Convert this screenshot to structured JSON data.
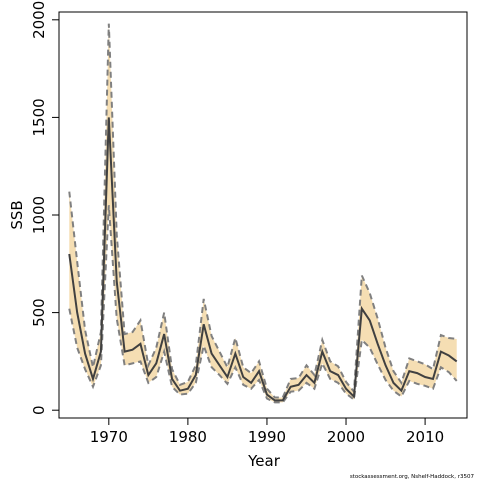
{
  "chart_data": {
    "type": "line",
    "xlabel": "Year",
    "ylabel": "SSB",
    "xlim": [
      1963.7,
      2015.3
    ],
    "ylim": [
      -40,
      2040
    ],
    "x_ticks": [
      1970,
      1980,
      1990,
      2000,
      2010
    ],
    "y_ticks": [
      0,
      500,
      1000,
      1500,
      2000
    ],
    "credit": "stockassessment.org, Nshelf-Haddock, r3507",
    "colors": {
      "band": "#f5deb3",
      "line": "#404040",
      "dashed": "#808080",
      "frame": "#000000"
    },
    "x": [
      1965,
      1966,
      1967,
      1968,
      1969,
      1970,
      1971,
      1972,
      1973,
      1974,
      1975,
      1976,
      1977,
      1978,
      1979,
      1980,
      1981,
      1982,
      1983,
      1984,
      1985,
      1986,
      1987,
      1988,
      1989,
      1990,
      1991,
      1992,
      1993,
      1994,
      1995,
      1996,
      1997,
      1998,
      1999,
      2000,
      2001,
      2002,
      2003,
      2004,
      2005,
      2006,
      2007,
      2008,
      2009,
      2010,
      2011,
      2012,
      2013,
      2014
    ],
    "series": [
      {
        "role": "estimate",
        "values": [
          800,
          500,
          290,
          160,
          300,
          1500,
          660,
          300,
          310,
          340,
          180,
          240,
          390,
          160,
          100,
          110,
          180,
          440,
          290,
          230,
          170,
          290,
          170,
          140,
          200,
          80,
          50,
          50,
          120,
          130,
          180,
          140,
          300,
          200,
          180,
          110,
          70,
          520,
          460,
          340,
          230,
          140,
          100,
          200,
          190,
          170,
          160,
          300,
          280,
          250
        ]
      },
      {
        "role": "lower",
        "values": [
          520,
          320,
          210,
          120,
          230,
          1050,
          470,
          230,
          240,
          250,
          140,
          170,
          300,
          120,
          80,
          85,
          140,
          330,
          220,
          180,
          135,
          220,
          130,
          110,
          155,
          60,
          40,
          40,
          95,
          100,
          140,
          110,
          240,
          160,
          140,
          85,
          55,
          360,
          320,
          235,
          155,
          100,
          70,
          150,
          135,
          125,
          110,
          220,
          195,
          150
        ]
      },
      {
        "role": "upper",
        "values": [
          1120,
          760,
          410,
          220,
          400,
          1980,
          900,
          390,
          400,
          460,
          230,
          320,
          500,
          210,
          130,
          145,
          230,
          570,
          380,
          300,
          220,
          370,
          220,
          190,
          250,
          110,
          65,
          65,
          160,
          165,
          230,
          180,
          360,
          250,
          225,
          145,
          95,
          690,
          600,
          470,
          320,
          200,
          140,
          265,
          250,
          235,
          210,
          385,
          370,
          365
        ]
      }
    ]
  }
}
